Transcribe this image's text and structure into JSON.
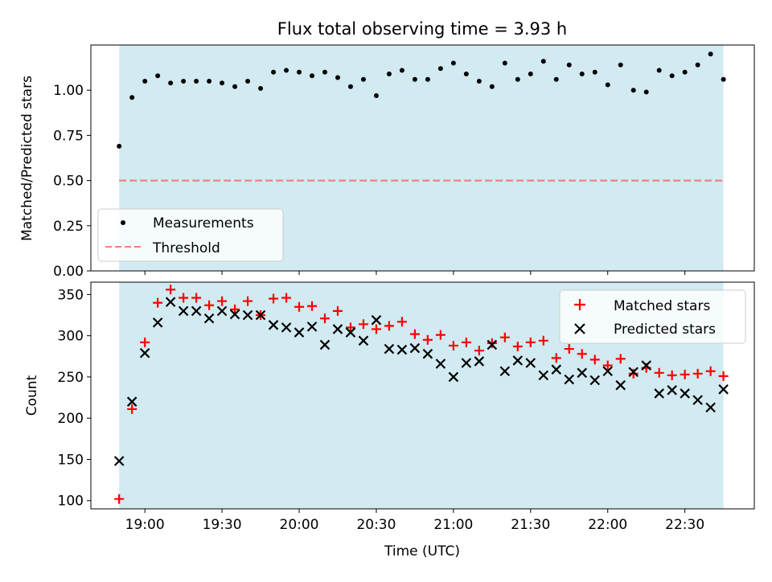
{
  "chart_data": [
    {
      "type": "scatter",
      "title": "Flux total observing time = 3.93 h",
      "ylabel": "Matched/Predicted stars",
      "xlabel": "",
      "ylim": [
        0,
        1.25
      ],
      "yticks": [
        "0.00",
        "0.25",
        "0.50",
        "0.75",
        "1.00"
      ],
      "yticks_values": [
        0,
        0.25,
        0.5,
        0.75,
        1.0
      ],
      "shaded_span": [
        "18:50",
        "22:45"
      ],
      "shade_color": "#add8e6",
      "legend_position": "lower-left",
      "series": [
        {
          "name": "Measurements",
          "marker": "dot",
          "color": "#000000",
          "x": [
            "18:50",
            "18:55",
            "19:00",
            "19:05",
            "19:10",
            "19:15",
            "19:20",
            "19:25",
            "19:30",
            "19:35",
            "19:40",
            "19:45",
            "19:50",
            "19:55",
            "20:00",
            "20:05",
            "20:10",
            "20:15",
            "20:20",
            "20:25",
            "20:30",
            "20:35",
            "20:40",
            "20:45",
            "20:50",
            "20:55",
            "21:00",
            "21:05",
            "21:10",
            "21:15",
            "21:20",
            "21:25",
            "21:30",
            "21:35",
            "21:40",
            "21:45",
            "21:50",
            "21:55",
            "22:00",
            "22:05",
            "22:10",
            "22:15",
            "22:20",
            "22:25",
            "22:30",
            "22:35",
            "22:40",
            "22:45"
          ],
          "y": [
            0.69,
            0.96,
            1.05,
            1.08,
            1.04,
            1.05,
            1.05,
            1.05,
            1.04,
            1.02,
            1.05,
            1.01,
            1.1,
            1.11,
            1.1,
            1.08,
            1.1,
            1.07,
            1.02,
            1.06,
            0.97,
            1.09,
            1.11,
            1.06,
            1.06,
            1.12,
            1.15,
            1.09,
            1.05,
            1.02,
            1.15,
            1.06,
            1.09,
            1.16,
            1.06,
            1.14,
            1.09,
            1.1,
            1.03,
            1.14,
            1.0,
            0.99,
            1.11,
            1.08,
            1.1,
            1.14,
            1.2,
            1.06
          ]
        },
        {
          "name": "Threshold",
          "marker": "dashed-line",
          "color": "#f08080",
          "x": [
            "18:50",
            "22:45"
          ],
          "y": [
            0.5,
            0.5
          ]
        }
      ]
    },
    {
      "type": "scatter",
      "title": "",
      "ylabel": "Count",
      "xlabel": "Time (UTC)",
      "ylim": [
        90,
        365
      ],
      "yticks": [
        "100",
        "150",
        "200",
        "250",
        "300",
        "350"
      ],
      "yticks_values": [
        100,
        150,
        200,
        250,
        300,
        350
      ],
      "xticks": [
        "19:00",
        "19:30",
        "20:00",
        "20:30",
        "21:00",
        "21:30",
        "22:00",
        "22:30"
      ],
      "x_range": [
        "18:39",
        "22:57"
      ],
      "shaded_span": [
        "18:50",
        "22:45"
      ],
      "shade_color": "#add8e6",
      "legend_position": "top-right",
      "series": [
        {
          "name": "Matched stars",
          "marker": "plus",
          "color": "#ff0000",
          "x": [
            "18:50",
            "18:55",
            "19:00",
            "19:05",
            "19:10",
            "19:15",
            "19:20",
            "19:25",
            "19:30",
            "19:35",
            "19:40",
            "19:45",
            "19:50",
            "19:55",
            "20:00",
            "20:05",
            "20:10",
            "20:15",
            "20:20",
            "20:25",
            "20:30",
            "20:35",
            "20:40",
            "20:45",
            "20:50",
            "20:55",
            "21:00",
            "21:05",
            "21:10",
            "21:15",
            "21:20",
            "21:25",
            "21:30",
            "21:35",
            "21:40",
            "21:45",
            "21:50",
            "21:55",
            "22:00",
            "22:05",
            "22:10",
            "22:15",
            "22:20",
            "22:25",
            "22:30",
            "22:35",
            "22:40",
            "22:45"
          ],
          "y": [
            102,
            211,
            292,
            340,
            356,
            346,
            346,
            337,
            342,
            332,
            342,
            325,
            345,
            346,
            335,
            336,
            321,
            330,
            310,
            314,
            308,
            312,
            317,
            302,
            295,
            301,
            288,
            292,
            282,
            291,
            298,
            287,
            292,
            294,
            273,
            284,
            278,
            271,
            264,
            272,
            254,
            261,
            255,
            252,
            253,
            254,
            257,
            251
          ]
        },
        {
          "name": "Predicted stars",
          "marker": "x",
          "color": "#000000",
          "x": [
            "18:50",
            "18:55",
            "19:00",
            "19:05",
            "19:10",
            "19:15",
            "19:20",
            "19:25",
            "19:30",
            "19:35",
            "19:40",
            "19:45",
            "19:50",
            "19:55",
            "20:00",
            "20:05",
            "20:10",
            "20:15",
            "20:20",
            "20:25",
            "20:30",
            "20:35",
            "20:40",
            "20:45",
            "20:50",
            "20:55",
            "21:00",
            "21:05",
            "21:10",
            "21:15",
            "21:20",
            "21:25",
            "21:30",
            "21:35",
            "21:40",
            "21:45",
            "21:50",
            "21:55",
            "22:00",
            "22:05",
            "22:10",
            "22:15",
            "22:20",
            "22:25",
            "22:30",
            "22:35",
            "22:40",
            "22:45"
          ],
          "y": [
            148,
            220,
            279,
            316,
            341,
            330,
            330,
            321,
            330,
            326,
            325,
            325,
            313,
            310,
            304,
            311,
            289,
            308,
            304,
            294,
            319,
            284,
            283,
            285,
            278,
            266,
            250,
            267,
            269,
            289,
            257,
            270,
            267,
            252,
            259,
            247,
            255,
            246,
            257,
            240,
            256,
            264,
            230,
            234,
            230,
            222,
            213,
            235
          ]
        }
      ]
    }
  ]
}
